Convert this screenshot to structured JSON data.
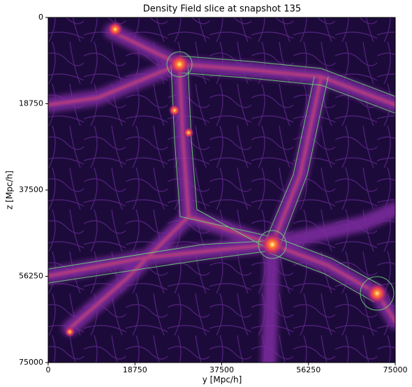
{
  "chart_data": {
    "type": "image",
    "title": "Density Field slice at snapshot 135",
    "xlabel": "y [Mpc/h]",
    "ylabel": "z [Mpc/h]",
    "xlim": [
      0,
      75000
    ],
    "ylim": [
      75000,
      0
    ],
    "xticks": [
      0,
      18750,
      37500,
      56250,
      75000
    ],
    "yticks": [
      0,
      18750,
      37500,
      56250,
      75000
    ]
  }
}
